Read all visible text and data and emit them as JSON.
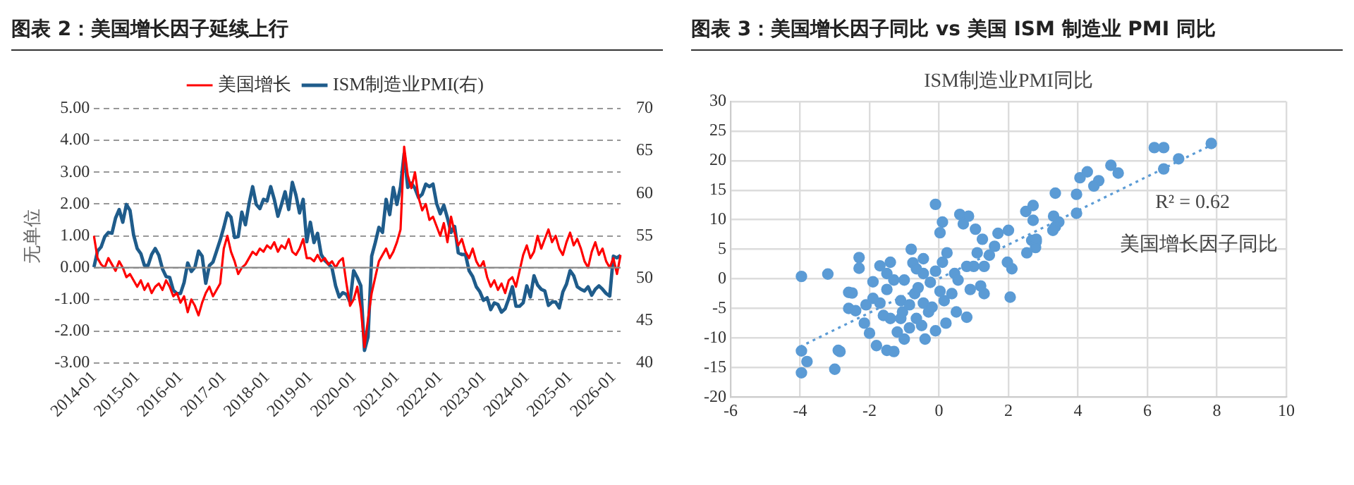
{
  "chart_data": [
    {
      "type": "line",
      "title": "图表 2：美国增长因子延续上行",
      "ylabel": "无单位",
      "legend": "top",
      "grid": "y",
      "marker": "none",
      "ref_lines": [
        {
          "axis": "y",
          "value": 0,
          "color": "#888888"
        }
      ],
      "categories": [
        "2014-01",
        null,
        null,
        null,
        null,
        null,
        null,
        null,
        null,
        null,
        null,
        null,
        "2015-01",
        null,
        null,
        null,
        null,
        null,
        null,
        null,
        null,
        null,
        null,
        null,
        "2016-01",
        null,
        null,
        null,
        null,
        null,
        null,
        null,
        null,
        null,
        null,
        null,
        "2017-01",
        null,
        null,
        null,
        null,
        null,
        null,
        null,
        null,
        null,
        null,
        null,
        "2018-01",
        null,
        null,
        null,
        null,
        null,
        null,
        null,
        null,
        null,
        null,
        null,
        "2019-01",
        null,
        null,
        null,
        null,
        null,
        null,
        null,
        null,
        null,
        null,
        null,
        "2020-01",
        null,
        null,
        null,
        null,
        null,
        null,
        null,
        null,
        null,
        null,
        null,
        "2021-01",
        null,
        null,
        null,
        null,
        null,
        null,
        null,
        null,
        null,
        null,
        null,
        "2022-01",
        null,
        null,
        null,
        null,
        null,
        null,
        null,
        null,
        null,
        null,
        null,
        "2023-01",
        null,
        null,
        null,
        null,
        null,
        null,
        null,
        null,
        null,
        null,
        null,
        "2024-01",
        null,
        null,
        null,
        null,
        null,
        null,
        null,
        null,
        null,
        null,
        null,
        "2025-01",
        null,
        null,
        null,
        null,
        null,
        null,
        null,
        null,
        null,
        null,
        null,
        "2026-01",
        null,
        null
      ],
      "ylim": [
        -3,
        5
      ],
      "yticks": [
        {
          "value": 5,
          "label": "5.00"
        },
        {
          "value": 4,
          "label": "4.00"
        },
        {
          "value": 3,
          "label": "3.00"
        },
        {
          "value": 2,
          "label": "2.00"
        },
        {
          "value": 1,
          "label": "1.00"
        },
        {
          "value": 0,
          "label": "0.00"
        },
        {
          "value": -1,
          "label": "-1.00"
        },
        {
          "value": -2,
          "label": "-2.00"
        },
        {
          "value": -3,
          "label": "-3.00"
        }
      ],
      "y2lim": [
        40,
        70
      ],
      "y2ticks": [
        40,
        45,
        50,
        55,
        60,
        65,
        70
      ],
      "series": [
        {
          "name": "美国增长",
          "color": "#ff0000",
          "values": [
            1.0,
            0.3,
            0.1,
            0.0,
            0.3,
            0.1,
            -0.1,
            0.2,
            0.0,
            -0.3,
            -0.2,
            -0.4,
            -0.6,
            -0.4,
            -0.7,
            -0.5,
            -0.8,
            -0.6,
            -0.5,
            -0.7,
            -0.4,
            -0.6,
            -0.9,
            -0.8,
            -1.1,
            -0.9,
            -1.4,
            -1.0,
            -1.2,
            -1.5,
            -1.1,
            -0.8,
            -0.6,
            -0.9,
            -0.7,
            -0.5,
            0.6,
            1.0,
            0.5,
            0.2,
            -0.2,
            0.0,
            0.1,
            0.3,
            0.5,
            0.4,
            0.6,
            0.5,
            0.7,
            0.6,
            0.8,
            0.5,
            0.7,
            0.6,
            0.9,
            0.5,
            0.4,
            0.6,
            0.9,
            0.3,
            0.3,
            0.2,
            0.4,
            0.2,
            0.3,
            0.1,
            0.2,
            0.0,
            0.2,
            0.3,
            -0.5,
            -1.2,
            -1.0,
            -0.6,
            -1.3,
            -2.5,
            -1.6,
            -0.8,
            -0.3,
            0.2,
            0.4,
            0.6,
            0.3,
            0.5,
            0.8,
            1.2,
            3.8,
            2.9,
            2.5,
            3.0,
            2.2,
            1.8,
            2.0,
            1.5,
            1.6,
            1.3,
            1.0,
            1.4,
            0.8,
            1.6,
            1.1,
            0.7,
            0.9,
            0.5,
            0.3,
            0.6,
            0.2,
            0.0,
            0.2,
            -0.3,
            -0.6,
            -0.4,
            -0.7,
            -0.5,
            -0.8,
            -0.4,
            -0.3,
            -0.6,
            -0.1,
            0.4,
            0.7,
            0.3,
            0.5,
            1.0,
            0.6,
            0.9,
            1.2,
            0.8,
            1.0,
            0.6,
            0.4,
            0.8,
            1.1,
            0.7,
            0.9,
            0.6,
            0.2,
            0.0,
            0.5,
            0.8,
            0.4,
            0.6,
            0.2,
            0.0,
            0.3,
            -0.2,
            0.4
          ]
        },
        {
          "name": "ISM制造业PMI(右)",
          "color": "#1f5c8b",
          "axis": "y2",
          "values": [
            51.3,
            53.2,
            53.7,
            54.9,
            55.4,
            55.3,
            57.1,
            58.1,
            56.6,
            58.7,
            58.0,
            55.1,
            53.5,
            52.9,
            51.5,
            51.5,
            52.8,
            53.5,
            52.7,
            51.1,
            50.2,
            50.1,
            48.6,
            48.2,
            48.2,
            49.5,
            51.8,
            50.8,
            51.3,
            53.2,
            52.6,
            49.4,
            51.5,
            51.9,
            53.2,
            54.5,
            56.0,
            57.7,
            57.2,
            54.8,
            54.9,
            57.8,
            56.3,
            58.8,
            60.8,
            58.7,
            58.2,
            59.3,
            59.1,
            60.8,
            59.3,
            57.3,
            58.7,
            60.2,
            58.1,
            61.3,
            59.8,
            57.7,
            59.3,
            54.3,
            56.6,
            54.2,
            55.3,
            52.8,
            52.1,
            51.7,
            51.2,
            49.1,
            47.8,
            48.3,
            48.1,
            47.2,
            50.9,
            50.1,
            49.1,
            41.5,
            43.1,
            52.6,
            54.2,
            56.0,
            55.4,
            59.3,
            57.5,
            60.7,
            58.7,
            60.8,
            64.7,
            60.7,
            61.2,
            60.6,
            59.5,
            59.9,
            61.1,
            60.8,
            61.1,
            58.8,
            57.6,
            58.6,
            57.1,
            55.4,
            56.1,
            53.0,
            52.8,
            52.8,
            50.9,
            50.2,
            49.0,
            48.4,
            47.4,
            47.7,
            46.3,
            47.1,
            46.9,
            46.0,
            46.4,
            47.6,
            49.0,
            46.7,
            46.7,
            47.1,
            49.1,
            47.8,
            50.3,
            49.2,
            48.7,
            48.5,
            46.8,
            47.2,
            47.2,
            46.5,
            48.4,
            49.3,
            50.9,
            50.3,
            49.0,
            48.7,
            48.5,
            49.0,
            48.0,
            48.7,
            49.1,
            48.7,
            48.2,
            47.9,
            52.6,
            52.4,
            52.7
          ]
        }
      ]
    },
    {
      "type": "scatter",
      "title": "图表 3：美国增长因子同比 vs 美国 ISM 制造业 PMI 同比",
      "xlabel": "美国增长因子同比",
      "ylabel": "ISM制造业PMI同比",
      "grid": true,
      "xlim": [
        -6,
        10
      ],
      "xticks": [
        -6,
        -4,
        -2,
        0,
        2,
        4,
        6,
        8,
        10
      ],
      "ylim": [
        -20,
        30
      ],
      "yticks": [
        -20,
        -15,
        -10,
        -5,
        0,
        5,
        10,
        15,
        20,
        25,
        30
      ],
      "annotations": [
        "R² = 0.62"
      ],
      "series": [
        {
          "color": "#5b9bd5",
          "marker": "circle",
          "x": [
            -3.96,
            -3.2,
            -3.96,
            -3.8,
            -3.96,
            -2.9,
            -2.85,
            -3.0,
            -2.3,
            -2.3,
            -2.6,
            -2.5,
            -2.6,
            -2.4,
            -2.15,
            -2.0,
            -1.8,
            -1.5,
            -1.3,
            -1.7,
            -1.4,
            -1.9,
            -1.5,
            -0.8,
            -0.75,
            -0.45,
            -0.1,
            0.1,
            0.03,
            0.6,
            0.85,
            0.7,
            1.05,
            1.25,
            1.7,
            2.0,
            1.97,
            2.1,
            2.05,
            1.3,
            1.2,
            0.8,
            0.5,
            0.2,
            -0.1,
            -0.4,
            -0.85,
            -1.0,
            -1.2,
            -1.1,
            -1.4,
            -1.6,
            -1.7,
            -1.1,
            -0.7,
            -0.45,
            -0.3,
            -0.2,
            -0.6,
            -1.0,
            -0.25,
            -0.1,
            0.1,
            0.23,
            0.45,
            0.55,
            0.9,
            1.0,
            1.3,
            1.45,
            1.6,
            1.1,
            0.8,
            0.37,
            0.15,
            -0.45,
            -0.65,
            0.03,
            -1.9,
            -2.1,
            -1.5,
            -1.3,
            -1.05,
            -0.65,
            -0.5,
            -0.85,
            6.2,
            6.47,
            7.84,
            6.9,
            6.47,
            4.95,
            5.16,
            4.27,
            4.06,
            4.6,
            4.46,
            3.96,
            3.35,
            3.96,
            3.3,
            3.45,
            3.35,
            3.28,
            2.71,
            2.71,
            2.67,
            2.8,
            2.78,
            2.53,
            2.5,
            2.8
          ],
          "values": [
            0.4,
            0.8,
            -12.2,
            -14,
            -15.9,
            -12.1,
            -12.3,
            -15.3,
            3.6,
            1.8,
            -2.3,
            -2.4,
            -5,
            -5.4,
            -7.5,
            -9.2,
            -11.3,
            -12.1,
            -12.3,
            2.2,
            2.8,
            -0.5,
            0.9,
            5,
            2.7,
            3.4,
            12.6,
            9.6,
            7.8,
            10.9,
            10.6,
            9.3,
            8.4,
            6.7,
            7.7,
            8.2,
            2.8,
            1.7,
            -3.1,
            -2.5,
            -1.2,
            -6.5,
            -5.6,
            -7.5,
            -8.8,
            -10.2,
            -8.3,
            -10.2,
            -9,
            -6.7,
            -6.7,
            -6.2,
            -4.1,
            -3.7,
            -2.5,
            -4.1,
            -5.6,
            -4.8,
            -1.5,
            -0.2,
            -0.6,
            1.3,
            2.8,
            4.4,
            0.9,
            -0.2,
            -1.8,
            2.1,
            2.1,
            4,
            5.5,
            4.4,
            2.1,
            -2.5,
            -3.7,
            0.9,
            1.7,
            -2.1,
            -3.3,
            -4.4,
            -1.8,
            -0.2,
            -5.6,
            -6.7,
            -7.9,
            -4.4,
            22.2,
            22.2,
            22.9,
            20.3,
            18.6,
            19.2,
            17.9,
            18.1,
            17.1,
            16.6,
            15.7,
            14.3,
            14.5,
            11.1,
            10.6,
            9.6,
            8.8,
            8.2,
            12.4,
            9.9,
            6.5,
            6.3,
            5.3,
            4.4,
            11.4,
            6.7
          ]
        },
        {
          "type": "line",
          "color": "#5b9bd5",
          "line_style": "dotted",
          "x": [
            -4,
            7.8
          ],
          "values": [
            -11.5,
            22.5
          ]
        }
      ]
    }
  ]
}
